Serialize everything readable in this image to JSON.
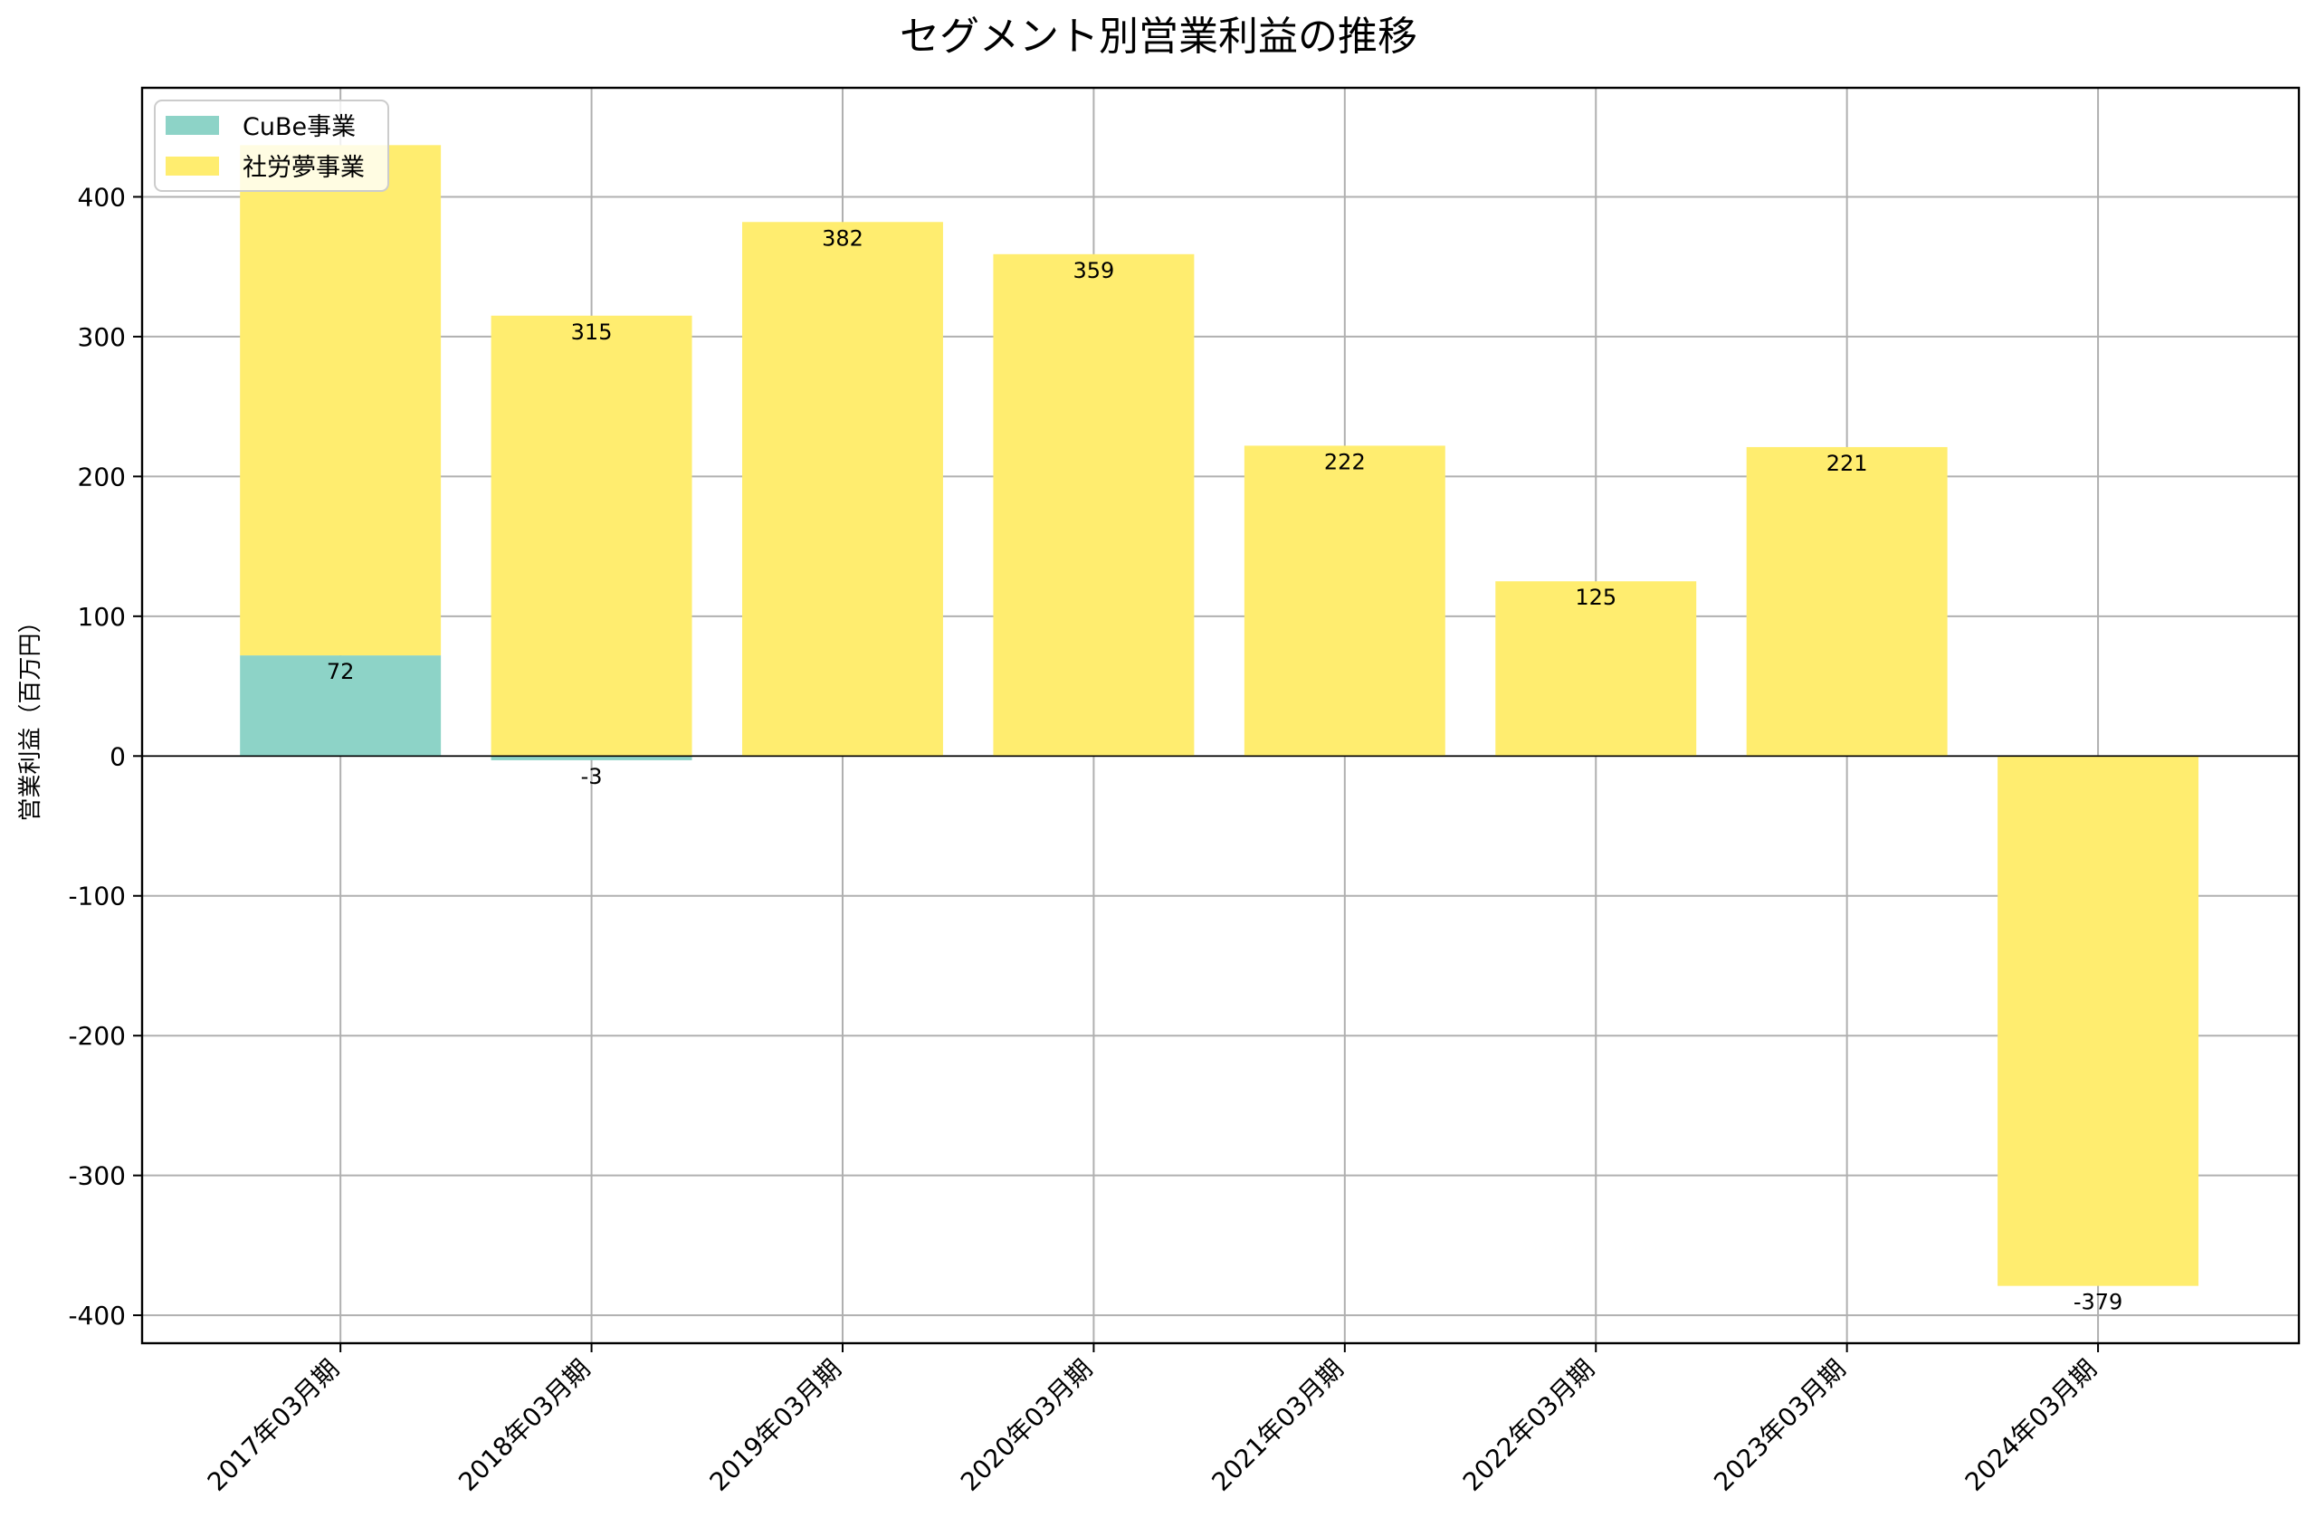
{
  "chart_data": {
    "type": "bar",
    "stacked": true,
    "title": "セグメント別営業利益の推移",
    "xlabel": "",
    "ylabel": "営業利益（百万円）",
    "categories": [
      "2017年03月期",
      "2018年03月期",
      "2019年03月期",
      "2020年03月期",
      "2021年03月期",
      "2022年03月期",
      "2023年03月期",
      "2024年03月期"
    ],
    "series": [
      {
        "name": "CuBe事業",
        "color": "#8dd3c7",
        "values": [
          72,
          -3,
          0,
          0,
          0,
          0,
          0,
          0
        ]
      },
      {
        "name": "社労夢事業",
        "color": "#ffed6f",
        "values": [
          365,
          315,
          382,
          359,
          222,
          125,
          221,
          -379
        ]
      }
    ],
    "data_labels": [
      {
        "series": 0,
        "index": 0,
        "text": "72"
      },
      {
        "series": 0,
        "index": 1,
        "text": "-3"
      },
      {
        "series": 1,
        "index": 1,
        "text": "315"
      },
      {
        "series": 1,
        "index": 2,
        "text": "382"
      },
      {
        "series": 1,
        "index": 3,
        "text": "359"
      },
      {
        "series": 1,
        "index": 4,
        "text": "222"
      },
      {
        "series": 1,
        "index": 5,
        "text": "125"
      },
      {
        "series": 1,
        "index": 6,
        "text": "221"
      },
      {
        "series": 1,
        "index": 7,
        "text": "-379"
      }
    ],
    "ylim": [
      -420,
      478
    ],
    "yticks": [
      -400,
      -300,
      -200,
      -100,
      0,
      100,
      200,
      300,
      400
    ],
    "ytick_labels": [
      "-400",
      "-300",
      "-200",
      "-100",
      "0",
      "100",
      "200",
      "300",
      "400"
    ],
    "grid": true,
    "legend_position": "upper left",
    "xtick_rotation": 45
  }
}
